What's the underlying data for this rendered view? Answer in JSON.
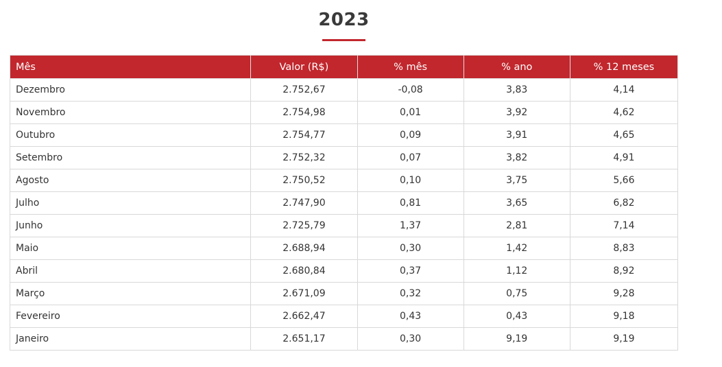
{
  "title": "2023",
  "colors": {
    "accent": "#c1272d",
    "header_text": "#ffffff",
    "border": "#d8d8d8"
  },
  "table": {
    "headers": [
      "Mês",
      "Valor (R$)",
      "% mês",
      "% ano",
      "% 12 meses"
    ],
    "rows": [
      [
        "Dezembro",
        "2.752,67",
        "-0,08",
        "3,83",
        "4,14"
      ],
      [
        "Novembro",
        "2.754,98",
        "0,01",
        "3,92",
        "4,62"
      ],
      [
        "Outubro",
        "2.754,77",
        "0,09",
        "3,91",
        "4,65"
      ],
      [
        "Setembro",
        "2.752,32",
        "0,07",
        "3,82",
        "4,91"
      ],
      [
        "Agosto",
        "2.750,52",
        "0,10",
        "3,75",
        "5,66"
      ],
      [
        "Julho",
        "2.747,90",
        "0,81",
        "3,65",
        "6,82"
      ],
      [
        "Junho",
        "2.725,79",
        "1,37",
        "2,81",
        "7,14"
      ],
      [
        "Maio",
        "2.688,94",
        "0,30",
        "1,42",
        "8,83"
      ],
      [
        "Abril",
        "2.680,84",
        "0,37",
        "1,12",
        "8,92"
      ],
      [
        "Março",
        "2.671,09",
        "0,32",
        "0,75",
        "9,28"
      ],
      [
        "Fevereiro",
        "2.662,47",
        "0,43",
        "0,43",
        "9,18"
      ],
      [
        "Janeiro",
        "2.651,17",
        "0,30",
        "9,19",
        "9,19"
      ]
    ]
  }
}
